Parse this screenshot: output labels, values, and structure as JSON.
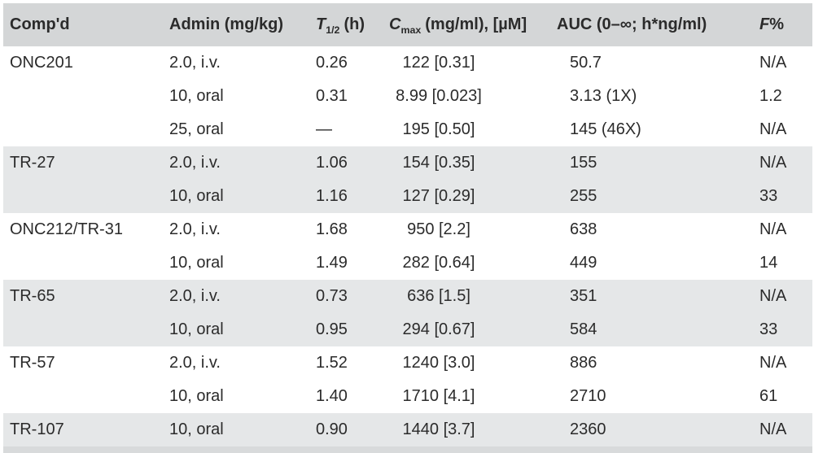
{
  "table": {
    "columns": [
      {
        "key": "compound",
        "label": "Comp'd"
      },
      {
        "key": "admin",
        "label": "Admin (mg/kg)"
      },
      {
        "key": "t_half",
        "symbol": "T",
        "subscript": "1/2",
        "suffix": "(h)"
      },
      {
        "key": "cmax",
        "symbol": "C",
        "subscript": "max",
        "suffix": "(mg/ml), [µM]"
      },
      {
        "key": "auc",
        "label": "AUC (0–∞; h*ng/ml)"
      },
      {
        "key": "f_percent",
        "symbol": "F",
        "suffix": "%"
      }
    ],
    "groups": [
      {
        "compound": "ONC201",
        "shaded": false,
        "rows": [
          {
            "admin": "2.0, i.v.",
            "t_half": "0.26",
            "cmax": "122 [0.31]",
            "auc": "50.7",
            "f": "N/A"
          },
          {
            "admin": "10, oral",
            "t_half": "0.31",
            "cmax": "8.99 [0.023]",
            "auc": "3.13 (1X)",
            "f": "1.2"
          },
          {
            "admin": "25, oral",
            "t_half": "—",
            "cmax": "195 [0.50]",
            "auc": "145 (46X)",
            "f": "N/A"
          }
        ]
      },
      {
        "compound": "TR-27",
        "shaded": true,
        "rows": [
          {
            "admin": "2.0, i.v.",
            "t_half": "1.06",
            "cmax": "154 [0.35]",
            "auc": "155",
            "f": "N/A"
          },
          {
            "admin": "10, oral",
            "t_half": "1.16",
            "cmax": "127 [0.29]",
            "auc": "255",
            "f": "33"
          }
        ]
      },
      {
        "compound": "ONC212/TR-31",
        "shaded": false,
        "rows": [
          {
            "admin": "2.0, i.v.",
            "t_half": "1.68",
            "cmax": "950 [2.2]",
            "auc": "638",
            "f": "N/A"
          },
          {
            "admin": "10, oral",
            "t_half": "1.49",
            "cmax": "282 [0.64]",
            "auc": "449",
            "f": "14"
          }
        ]
      },
      {
        "compound": "TR-65",
        "shaded": true,
        "rows": [
          {
            "admin": "2.0, i.v.",
            "t_half": "0.73",
            "cmax": "636 [1.5]",
            "auc": "351",
            "f": "N/A"
          },
          {
            "admin": "10, oral",
            "t_half": "0.95",
            "cmax": "294 [0.67]",
            "auc": "584",
            "f": "33"
          }
        ]
      },
      {
        "compound": "TR-57",
        "shaded": false,
        "rows": [
          {
            "admin": "2.0, i.v.",
            "t_half": "1.52",
            "cmax": "1240 [3.0]",
            "auc": "886",
            "f": "N/A"
          },
          {
            "admin": "10, oral",
            "t_half": "1.40",
            "cmax": "1710 [4.1]",
            "auc": "2710",
            "f": "61"
          }
        ]
      },
      {
        "compound": "TR-107",
        "shaded": true,
        "rows": [
          {
            "admin": "10, oral",
            "t_half": "0.90",
            "cmax": "1440 [3.7]",
            "auc": "2360",
            "f": "N/A"
          }
        ]
      }
    ]
  },
  "colors": {
    "header_bg": "#d4d6d7",
    "band_bg": "#e5e7e8",
    "text": "#2b2b2b",
    "page_bg": "#ffffff",
    "bottom_strip": "#d8dadb"
  }
}
